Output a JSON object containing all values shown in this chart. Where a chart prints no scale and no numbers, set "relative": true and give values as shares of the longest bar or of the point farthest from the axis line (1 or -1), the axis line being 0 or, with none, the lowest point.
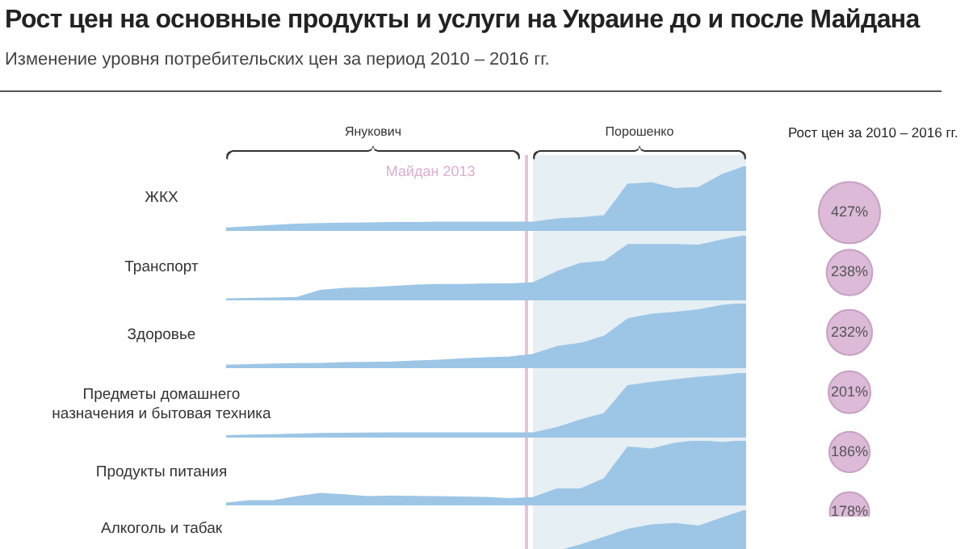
{
  "chart_data": [
    {
      "type": "area",
      "title": "Рост цен на основные продукты и услуги на Украине до и после Майдана",
      "subtitle": "Изменение уровня потребительских цен за период 2010 – 2016 гг.",
      "annotations": [
        "Янукович",
        "Порошенко",
        "Майдан 2013"
      ],
      "ylabel": "ЖКХ",
      "relative": true,
      "tick_labels": false,
      "color": "#9dc6e6",
      "categories": [
        null,
        null,
        null,
        null,
        null,
        null,
        null,
        null,
        null,
        null,
        null,
        null,
        null,
        null,
        null,
        null,
        null,
        null,
        null,
        null,
        null,
        null,
        null
      ],
      "values": [
        0.04,
        0.06,
        0.08,
        0.1,
        0.11,
        0.115,
        0.12,
        0.125,
        0.125,
        0.13,
        0.13,
        0.13,
        0.13,
        0.13,
        0.18,
        0.2,
        0.23,
        0.72,
        0.74,
        0.65,
        0.67,
        0.87,
        1
      ]
    },
    {
      "type": "area",
      "ylabel": "Транспорт",
      "relative": true,
      "tick_labels": false,
      "color": "#9dc6e6",
      "categories": [
        null,
        null,
        null,
        null,
        null,
        null,
        null,
        null,
        null,
        null,
        null,
        null,
        null,
        null,
        null,
        null,
        null,
        null,
        null,
        null,
        null,
        null,
        null
      ],
      "values": [
        0.02,
        0.025,
        0.03,
        0.04,
        0.15,
        0.18,
        0.19,
        0.21,
        0.23,
        0.24,
        0.24,
        0.25,
        0.25,
        0.27,
        0.44,
        0.57,
        0.6,
        0.86,
        0.86,
        0.86,
        0.85,
        0.93,
        1
      ]
    },
    {
      "type": "area",
      "ylabel": "Здоровье",
      "relative": true,
      "tick_labels": false,
      "color": "#9dc6e6",
      "categories": [
        null,
        null,
        null,
        null,
        null,
        null,
        null,
        null,
        null,
        null,
        null,
        null,
        null,
        null,
        null,
        null,
        null,
        null,
        null,
        null,
        null,
        null,
        null
      ],
      "values": [
        0.04,
        0.05,
        0.06,
        0.065,
        0.07,
        0.08,
        0.085,
        0.09,
        0.105,
        0.12,
        0.14,
        0.155,
        0.17,
        0.21,
        0.33,
        0.38,
        0.49,
        0.76,
        0.83,
        0.86,
        0.9,
        0.97,
        1
      ]
    },
    {
      "type": "area",
      "ylabel": "Предметы домашнего назначения и бытовая техника",
      "relative": true,
      "tick_labels": false,
      "color": "#9dc6e6",
      "categories": [
        null,
        null,
        null,
        null,
        null,
        null,
        null,
        null,
        null,
        null,
        null,
        null,
        null,
        null,
        null,
        null,
        null,
        null,
        null,
        null,
        null,
        null,
        null
      ],
      "values": [
        0.025,
        0.035,
        0.04,
        0.05,
        0.06,
        0.062,
        0.065,
        0.068,
        0.07,
        0.07,
        0.07,
        0.07,
        0.07,
        0.07,
        0.15,
        0.27,
        0.37,
        0.8,
        0.85,
        0.89,
        0.93,
        0.96,
        1
      ]
    },
    {
      "type": "area",
      "ylabel": "Продукты питания",
      "relative": true,
      "tick_labels": false,
      "color": "#9dc6e6",
      "categories": [
        null,
        null,
        null,
        null,
        null,
        null,
        null,
        null,
        null,
        null,
        null,
        null,
        null,
        null,
        null,
        null,
        null,
        null,
        null,
        null,
        null,
        null,
        null
      ],
      "values": [
        0.03,
        0.07,
        0.07,
        0.13,
        0.18,
        0.16,
        0.13,
        0.14,
        0.135,
        0.13,
        0.125,
        0.12,
        0.1,
        0.12,
        0.25,
        0.25,
        0.41,
        0.9,
        0.87,
        0.96,
        1,
        0.97,
        1
      ]
    },
    {
      "type": "area",
      "ylabel": "Алкоголь и табак",
      "relative": true,
      "tick_labels": false,
      "color": "#9dc6e6",
      "categories": [
        null,
        null,
        null,
        null,
        null,
        null,
        null,
        null,
        null,
        null,
        null,
        null,
        null,
        null,
        null,
        null,
        null,
        null,
        null,
        null,
        null,
        null,
        null
      ],
      "values": [
        null,
        null,
        null,
        null,
        null,
        null,
        null,
        null,
        null,
        null,
        null,
        null,
        null,
        null,
        0.36,
        0.46,
        0.58,
        0.7,
        0.77,
        0.79,
        0.75,
        0.88,
        1
      ]
    },
    {
      "type": "other",
      "title": "Рост цен за 2010 – 2016 гг.",
      "color": "#dcbad8",
      "values": [
        427,
        238,
        232,
        201,
        186,
        178
      ],
      "value_labels": [
        "427%",
        "238%",
        "232%",
        "201%",
        "186%",
        "178%"
      ]
    }
  ]
}
